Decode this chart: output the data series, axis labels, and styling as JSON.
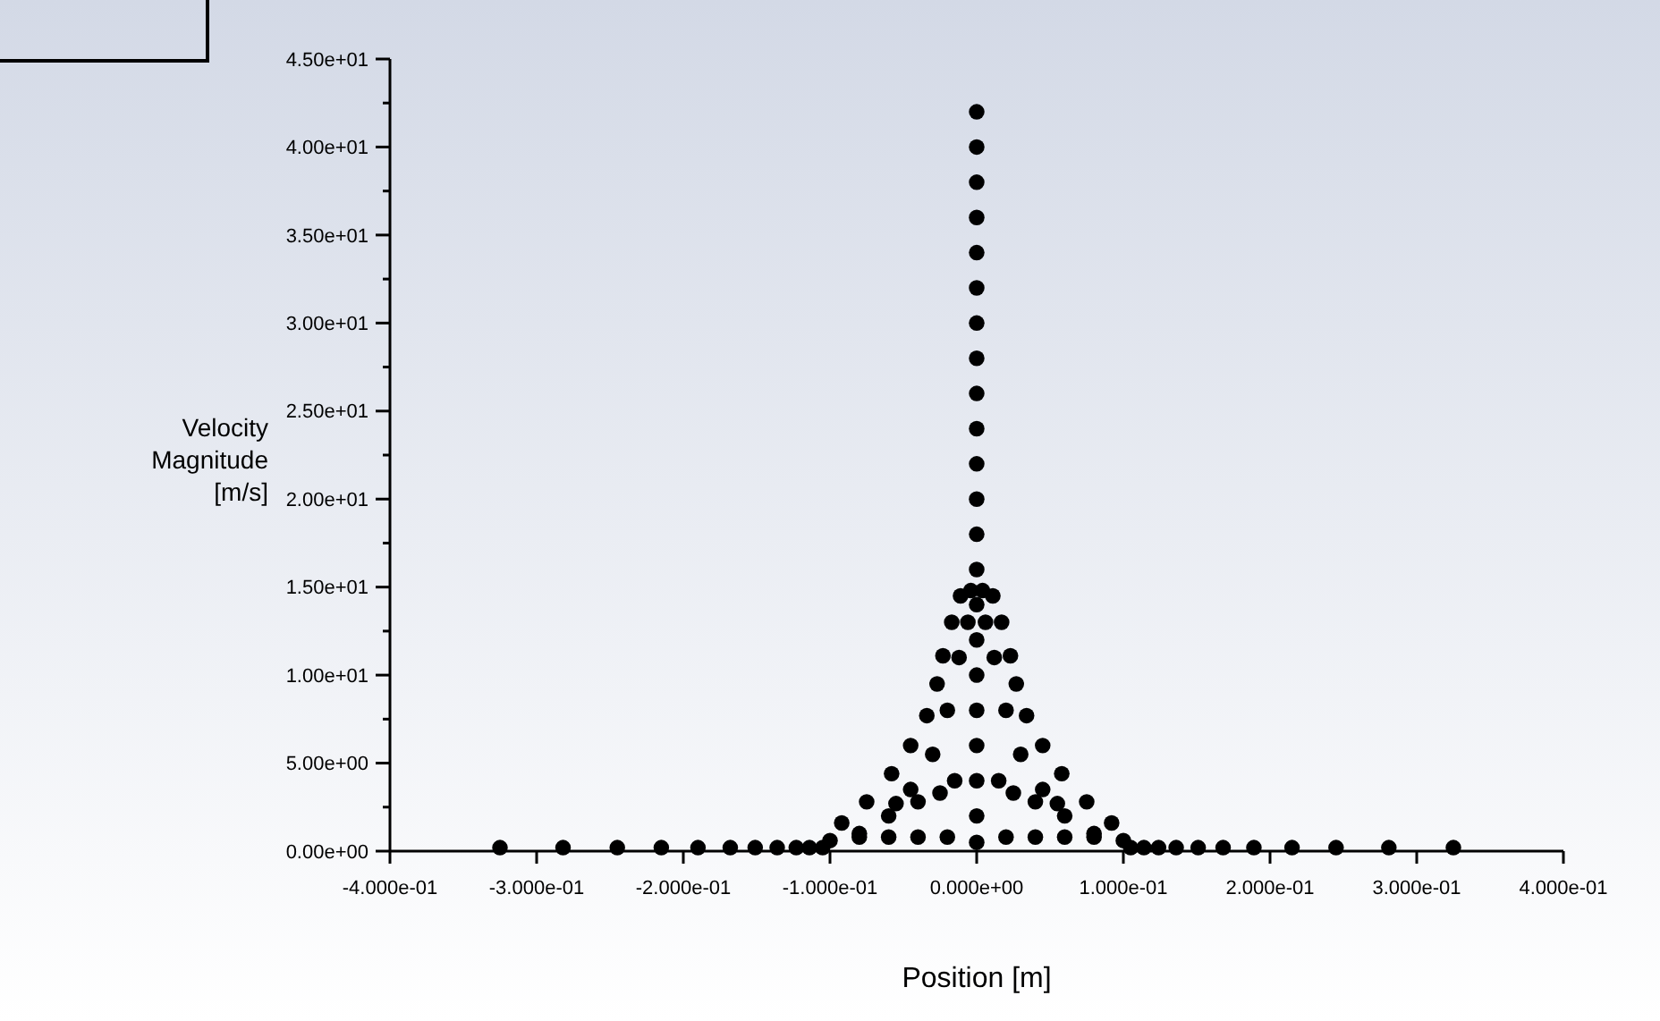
{
  "chart_data": {
    "type": "scatter",
    "xlabel": "Position [m]",
    "ylabel": "Velocity Magnitude [m/s]",
    "marker": "circle",
    "grid": false,
    "xlim": [
      -0.4,
      0.4
    ],
    "ylim": [
      0,
      45
    ],
    "xticks": [
      {
        "value": -0.4,
        "label": "-4.000e-01"
      },
      {
        "value": -0.3,
        "label": "-3.000e-01"
      },
      {
        "value": -0.2,
        "label": "-2.000e-01"
      },
      {
        "value": -0.1,
        "label": "-1.000e-01"
      },
      {
        "value": 0,
        "label": "0.000e+00"
      },
      {
        "value": 0.1,
        "label": "1.000e-01"
      },
      {
        "value": 0.2,
        "label": "2.000e-01"
      },
      {
        "value": 0.3,
        "label": "3.000e-01"
      },
      {
        "value": 0.4,
        "label": "4.000e-01"
      }
    ],
    "yticks": [
      {
        "value": 0,
        "label": "0.00e+00"
      },
      {
        "value": 2.5,
        "label": null
      },
      {
        "value": 5,
        "label": "5.00e+00"
      },
      {
        "value": 7.5,
        "label": null
      },
      {
        "value": 10,
        "label": "1.00e+01"
      },
      {
        "value": 12.5,
        "label": null
      },
      {
        "value": 15,
        "label": "1.50e+01"
      },
      {
        "value": 17.5,
        "label": null
      },
      {
        "value": 20,
        "label": "2.00e+01"
      },
      {
        "value": 22.5,
        "label": null
      },
      {
        "value": 25,
        "label": "2.50e+01"
      },
      {
        "value": 27.5,
        "label": null
      },
      {
        "value": 30,
        "label": "3.00e+01"
      },
      {
        "value": 32.5,
        "label": null
      },
      {
        "value": 35,
        "label": "3.50e+01"
      },
      {
        "value": 37.5,
        "label": null
      },
      {
        "value": 40,
        "label": "4.00e+01"
      },
      {
        "value": 42.5,
        "label": null
      },
      {
        "value": 45,
        "label": "4.50e+01"
      }
    ],
    "series": [
      {
        "color": "#000000",
        "x": [
          -0.325,
          -0.282,
          -0.245,
          -0.215,
          -0.19,
          -0.168,
          -0.151,
          -0.136,
          -0.123,
          -0.114,
          -0.105,
          0.105,
          0.114,
          0.124,
          0.136,
          0.151,
          0.168,
          0.189,
          0.215,
          0.245,
          0.281,
          0.325,
          -0.1,
          -0.08,
          -0.06,
          -0.04,
          -0.02,
          0.02,
          0.04,
          0.06,
          0.08,
          0.1,
          -0.092,
          -0.075,
          -0.058,
          -0.045,
          -0.034,
          -0.027,
          -0.023,
          -0.017,
          -0.011,
          -0.004,
          0.004,
          0.011,
          0.017,
          0.023,
          0.027,
          0.034,
          0.045,
          0.058,
          0.075,
          0.092,
          -0.08,
          -0.06,
          -0.045,
          -0.03,
          -0.02,
          -0.012,
          -0.006,
          0.006,
          0.012,
          0.02,
          0.03,
          0.045,
          0.06,
          0.08,
          -0.055,
          -0.04,
          -0.025,
          -0.015,
          0.015,
          0.025,
          0.04,
          0.055,
          0,
          0,
          0,
          0,
          0,
          0,
          0,
          0,
          0,
          0,
          0,
          0,
          0,
          0,
          0,
          0,
          0,
          0,
          0,
          0,
          0,
          0
        ],
        "values": [
          0.2,
          0.2,
          0.2,
          0.2,
          0.2,
          0.2,
          0.2,
          0.2,
          0.2,
          0.2,
          0.2,
          0.2,
          0.2,
          0.2,
          0.2,
          0.2,
          0.2,
          0.2,
          0.2,
          0.2,
          0.2,
          0.2,
          0.6,
          0.8,
          0.8,
          0.8,
          0.8,
          0.8,
          0.8,
          0.8,
          0.8,
          0.6,
          1.6,
          2.8,
          4.4,
          6,
          7.7,
          9.5,
          11.1,
          13,
          14.5,
          14.8,
          14.8,
          14.5,
          13,
          11.1,
          9.5,
          7.7,
          6,
          4.4,
          2.8,
          1.6,
          1,
          2,
          3.5,
          5.5,
          8,
          11,
          13,
          13,
          11,
          8,
          5.5,
          3.5,
          2,
          1,
          2.7,
          2.8,
          3.3,
          4,
          4,
          3.3,
          2.8,
          2.7,
          0.5,
          2,
          4,
          6,
          8,
          10,
          12,
          14,
          16,
          18,
          20,
          22,
          24,
          26,
          28,
          30,
          32,
          34,
          36,
          38,
          40,
          42
        ]
      }
    ]
  }
}
